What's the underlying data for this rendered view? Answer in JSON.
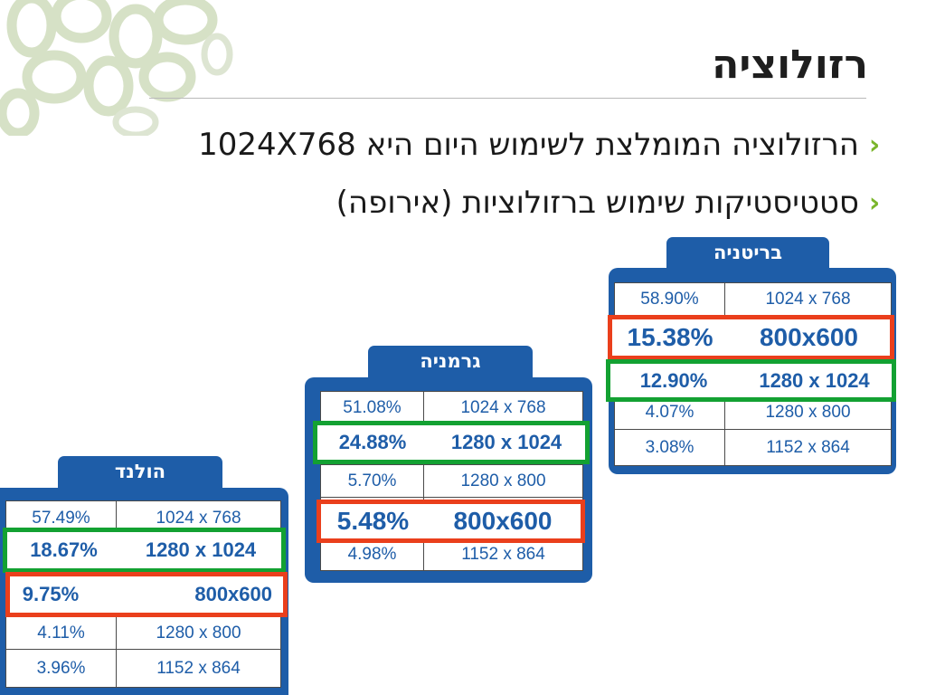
{
  "slide": {
    "title": "רזולוציה",
    "bullets": [
      "הרזולוציה המומלצת לשימוש היום היא 1024X768",
      "סטטיסטיקות שימוש ברזולוציות (אירופה)"
    ]
  },
  "colors": {
    "panel": "#1e5da8",
    "highlight_green": "#13a132",
    "highlight_red": "#ea3f1c",
    "bullet_marker": "#7ab52a"
  },
  "icons": {
    "bullet_marker": "chevron-left-icon",
    "decoration": "ring-pattern"
  },
  "tables": {
    "britain": {
      "title": "בריטניה",
      "rows": [
        {
          "res": "1024 x 768",
          "pct": "58.90%"
        },
        {
          "res": "800x600",
          "pct": "15.38%"
        },
        {
          "res": "1280 x 1024",
          "pct": "12.90%"
        },
        {
          "res": "1280 x 800",
          "pct": "4.07%"
        },
        {
          "res": "1152 x 864",
          "pct": "3.08%"
        }
      ]
    },
    "germany": {
      "title": "גרמניה",
      "rows": [
        {
          "res": "1024 x 768",
          "pct": "51.08%"
        },
        {
          "res": "1280 x 1024",
          "pct": "24.88%"
        },
        {
          "res": "1280 x 800",
          "pct": "5.70%"
        },
        {
          "res": "800x600",
          "pct": "5.48%"
        },
        {
          "res": "1152 x 864",
          "pct": "4.98%"
        }
      ]
    },
    "netherlands": {
      "title": "הולנד",
      "rows": [
        {
          "res": "1024 x 768",
          "pct": "57.49%"
        },
        {
          "res": "1280 x 1024",
          "pct": "18.67%"
        },
        {
          "res": "800x600",
          "pct": "9.75%"
        },
        {
          "res": "1280 x 800",
          "pct": "4.11%"
        },
        {
          "res": "1152 x 864",
          "pct": "3.96%"
        }
      ]
    }
  }
}
